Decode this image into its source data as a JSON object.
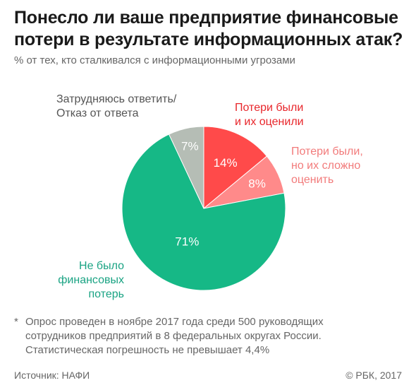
{
  "header": {
    "title": "Понесло ли ваше предприятие финансовые потери в результате информационных атак?",
    "subtitle": "% от тех, кто сталкивался с информационными угрозами"
  },
  "chart_data": {
    "type": "pie",
    "title": "Понесло ли ваше предприятие финансовые потери в результате информационных атак?",
    "subtitle": "% от тех, кто сталкивался с информационными угрозами",
    "slices": [
      {
        "label": "Потери были\nи их оценили",
        "value": 14,
        "value_label": "14%",
        "color": "#ff4a4a"
      },
      {
        "label": "Потери были,\nно их сложно\nоценить",
        "value": 8,
        "value_label": "8%",
        "color": "#ff8a8a"
      },
      {
        "label": "Не было\nфинансовых\nпотерь",
        "value": 71,
        "value_label": "71%",
        "color": "#16b886"
      },
      {
        "label": "Затрудняюсь ответить/\nОтказ от ответа",
        "value": 7,
        "value_label": "7%",
        "color": "#b5bdb5"
      }
    ],
    "start": "top",
    "direction": "clockwise"
  },
  "footer": {
    "footnote_star": "*",
    "footnote": "Опрос проведен в ноябре 2017 года среди 500 руководящих\nсотрудников предприятий в 8 федеральных округах России.\nСтатистическая погрешность не превышает 4,4%",
    "source": "Источник: НАФИ",
    "copyright": "© РБК, 2017"
  }
}
